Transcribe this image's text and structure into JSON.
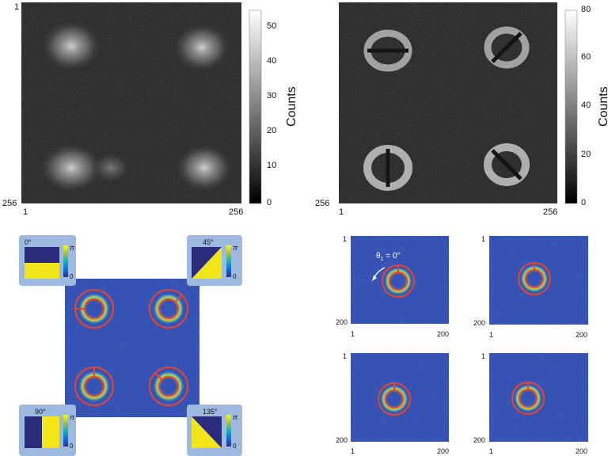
{
  "chart_data": [
    {
      "type": "heatmap",
      "panel": "top-left",
      "x_tick_labels": [
        "1",
        "256"
      ],
      "y_tick_labels": [
        "1",
        "256"
      ],
      "colorbar": {
        "label": "Counts",
        "ticks": [
          0,
          10,
          20,
          30,
          40,
          50
        ],
        "range": [
          0,
          55
        ],
        "colormap": "gray"
      },
      "spots": [
        "top-left",
        "top-right",
        "bottom-left",
        "bottom-right"
      ]
    },
    {
      "type": "heatmap",
      "panel": "top-right",
      "x_tick_labels": [
        "1",
        "256"
      ],
      "y_tick_labels": [
        "256"
      ],
      "colorbar": {
        "label": "Counts",
        "ticks": [
          0,
          20,
          40,
          60,
          80
        ],
        "range": [
          0,
          80
        ],
        "colormap": "gray"
      },
      "spots": [
        "top-left",
        "top-right",
        "bottom-left",
        "bottom-right"
      ]
    },
    {
      "type": "heatmap",
      "panel": "bottom-left",
      "colormap": "parula",
      "insets": [
        {
          "angle": "0°",
          "max_label": "π",
          "min_label": "0"
        },
        {
          "angle": "45°",
          "max_label": "π",
          "min_label": "0"
        },
        {
          "angle": "90°",
          "max_label": "π",
          "min_label": "0"
        },
        {
          "angle": "135°",
          "max_label": "π",
          "min_label": "0"
        }
      ]
    },
    {
      "type": "heatmap",
      "panel": "bottom-right-grid",
      "colormap": "parula",
      "annotation": "θ",
      "annotation_sub": "1",
      "annotation_value": " = 0°",
      "subplots": [
        {
          "x_tick_labels": [
            "1",
            "200"
          ],
          "y_tick_labels": [
            "1",
            "200"
          ]
        },
        {
          "x_tick_labels": [
            "1",
            "200"
          ],
          "y_tick_labels": [
            "1",
            "200"
          ]
        },
        {
          "x_tick_labels": [
            "1",
            "200"
          ],
          "y_tick_labels": [
            "1",
            "200"
          ]
        },
        {
          "x_tick_labels": [
            "1",
            "200"
          ],
          "y_tick_labels": [
            "1",
            "200"
          ]
        }
      ]
    }
  ],
  "colors": {
    "heat_bg": "#2c43a8",
    "heat_ring": "#e8452a",
    "inset_bg": "#9db9e0",
    "inset_dark": "#2b2b7e",
    "inset_yellow": "#f2e51a"
  }
}
